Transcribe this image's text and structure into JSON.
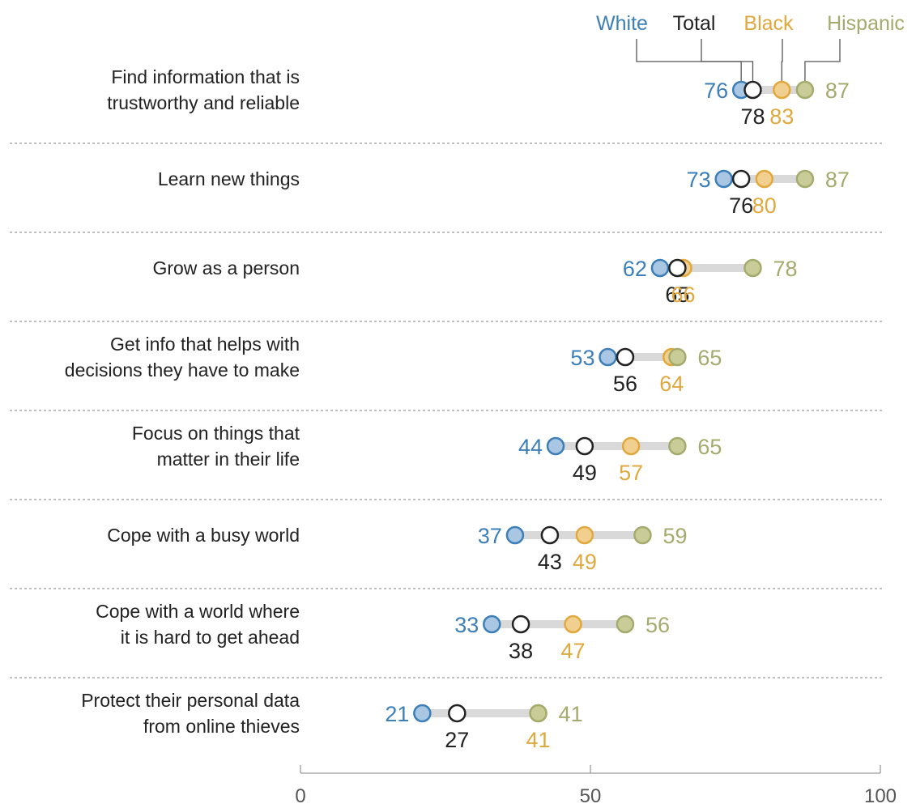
{
  "chart_data": {
    "type": "dot-range",
    "xlim": [
      0,
      100
    ],
    "x_ticks": [
      0,
      50,
      100
    ],
    "legend_placement": "top-right",
    "grid": false,
    "categories": [
      [
        "Find information that is",
        "trustworthy and reliable"
      ],
      [
        "Learn new things"
      ],
      [
        "Grow as a person"
      ],
      [
        "Get info that helps with",
        "decisions they have to make"
      ],
      [
        "Focus on things that",
        "matter in their life"
      ],
      [
        "Cope with a busy world"
      ],
      [
        "Cope with a world where",
        "it is hard to get ahead"
      ],
      [
        "Protect their personal data",
        "from online thieves"
      ]
    ],
    "series": [
      {
        "name": "White",
        "color": "#3d7fb8",
        "fill": "#a9c6e3",
        "values": [
          76,
          73,
          62,
          53,
          44,
          37,
          33,
          21
        ]
      },
      {
        "name": "Total",
        "color": "#222222",
        "fill": "#ffffff",
        "values": [
          78,
          76,
          65,
          56,
          49,
          43,
          38,
          27
        ]
      },
      {
        "name": "Black",
        "color": "#e0a83d",
        "fill": "#f1d08f",
        "values": [
          83,
          80,
          66,
          64,
          57,
          49,
          47,
          41
        ]
      },
      {
        "name": "Hispanic",
        "color": "#a5ab6d",
        "fill": "#cacc98",
        "values": [
          87,
          87,
          78,
          65,
          65,
          59,
          56,
          41
        ]
      }
    ],
    "colors": {
      "range_bar": "#d9d9d9",
      "divider": "#9a9a9a",
      "axis": "#9a9a9a",
      "white_text": "#3d7fb8",
      "total_text": "#222222",
      "black_text": "#e0a83d",
      "hispanic_text": "#a5ab6d"
    }
  }
}
